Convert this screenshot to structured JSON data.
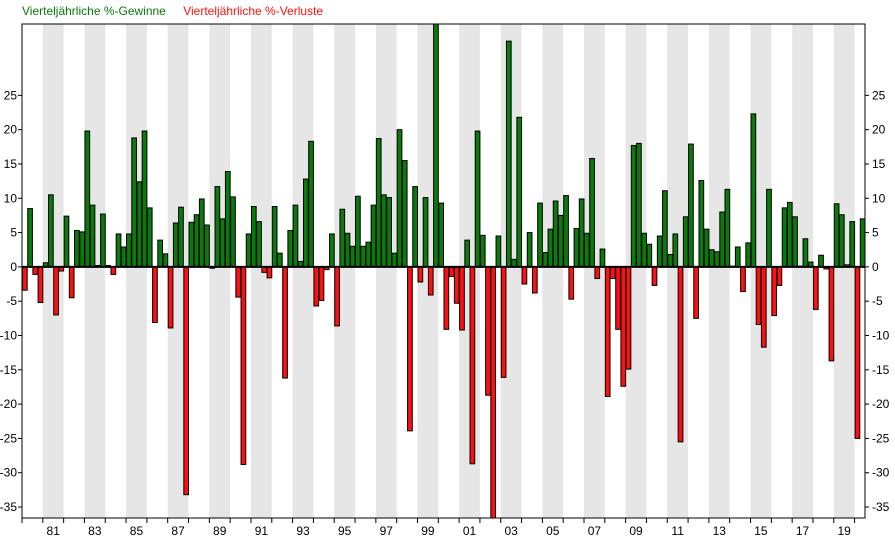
{
  "chart_data": {
    "type": "bar",
    "title": "",
    "xlabel": "",
    "ylabel": "",
    "legend": [
      {
        "label": "Vierteljährliche %-Gewinne",
        "color": "#0a7a0a"
      },
      {
        "label": "Vierteljährliche %-Verluste",
        "color": "#ff1010"
      }
    ],
    "legend_position": "top-left",
    "start_year": 1980,
    "x_unit": "quarter",
    "ylim": [
      -36.6,
      35.4
    ],
    "yticks": [
      -35,
      -30,
      -25,
      -20,
      -15,
      -10,
      -5,
      0,
      5,
      10,
      15,
      20,
      25
    ],
    "xtick_labels": [
      "81",
      "83",
      "85",
      "87",
      "89",
      "91",
      "93",
      "95",
      "97",
      "99",
      "01",
      "03",
      "05",
      "07",
      "09",
      "11",
      "13",
      "15",
      "17",
      "19"
    ],
    "alternating_year_shading": true,
    "values": [
      -3.4,
      8.5,
      -1.1,
      -5.2,
      0.6,
      10.5,
      -7.0,
      -0.6,
      7.4,
      -4.5,
      5.3,
      5.1,
      19.8,
      9.0,
      0.2,
      7.7,
      0.2,
      -1.1,
      4.8,
      2.9,
      4.8,
      18.8,
      12.4,
      19.8,
      8.6,
      -8.1,
      3.9,
      1.9,
      -8.9,
      6.4,
      8.7,
      -33.2,
      6.5,
      7.6,
      9.9,
      6.1,
      -0.2,
      11.7,
      7.0,
      13.9,
      10.2,
      -4.4,
      -28.8,
      4.8,
      8.8,
      6.6,
      -0.8,
      -1.6,
      8.8,
      2.0,
      -16.2,
      5.3,
      9.0,
      0.8,
      12.8,
      18.3,
      -5.7,
      -4.9,
      -0.4,
      4.8,
      -8.6,
      8.4,
      4.9,
      3.0,
      10.3,
      3.0,
      3.6,
      9.0,
      18.7,
      10.5,
      10.1,
      2.0,
      20.0,
      15.5,
      -23.9,
      11.7,
      -2.2,
      10.1,
      -4.1,
      36.0,
      9.3,
      -9.1,
      -1.4,
      -5.3,
      -9.2,
      3.9,
      -28.7,
      19.8,
      4.6,
      -18.7,
      -36.6,
      4.5,
      -16.1,
      32.9,
      1.1,
      21.8,
      -2.5,
      5.0,
      -3.8,
      9.3,
      2.1,
      5.5,
      9.6,
      7.5,
      10.4,
      -4.7,
      5.6,
      9.9,
      4.9,
      15.8,
      -1.7,
      2.6,
      -18.9,
      -1.7,
      -9.1,
      -17.4,
      -14.9,
      17.7,
      18.0,
      4.9,
      3.3,
      -2.7,
      4.5,
      11.1,
      1.8,
      4.8,
      -25.5,
      7.3,
      17.9,
      -7.5,
      12.6,
      5.5,
      2.5,
      2.2,
      8.0,
      11.3,
      0.1,
      2.9,
      -3.6,
      3.5,
      22.3,
      -8.4,
      -11.7,
      11.3,
      -7.1,
      -2.7,
      8.6,
      9.4,
      7.3,
      0.1,
      4.1,
      0.7,
      -6.2,
      1.7,
      -0.3,
      -13.7,
      9.2,
      7.6,
      0.3,
      6.6,
      -25.0,
      7.0
    ]
  }
}
